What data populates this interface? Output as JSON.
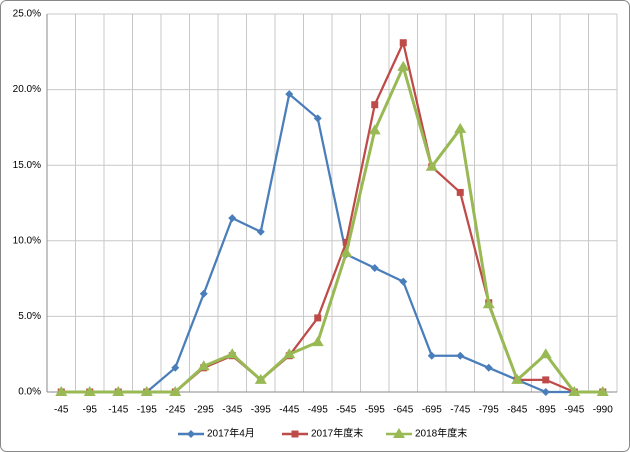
{
  "chart_data": {
    "type": "line",
    "categories": [
      "-45",
      "-95",
      "-145",
      "-195",
      "-245",
      "-295",
      "-345",
      "-395",
      "-445",
      "-495",
      "-545",
      "-595",
      "-645",
      "-695",
      "-745",
      "-795",
      "-845",
      "-895",
      "-945",
      "-990"
    ],
    "series": [
      {
        "name": "2017年4月",
        "color": "#4a7ebb",
        "marker": "diamond",
        "values": [
          0,
          0,
          0,
          0,
          1.6,
          6.5,
          11.5,
          10.6,
          19.7,
          18.1,
          9.1,
          8.2,
          7.3,
          2.4,
          2.4,
          1.6,
          0.8,
          0,
          0,
          0
        ]
      },
      {
        "name": "2017年度末",
        "color": "#be4b48",
        "marker": "square",
        "values": [
          0,
          0,
          0,
          0,
          0,
          1.6,
          2.4,
          0.8,
          2.4,
          4.9,
          9.9,
          19.0,
          23.1,
          14.9,
          13.2,
          5.9,
          0.8,
          0.8,
          0,
          0
        ]
      },
      {
        "name": "2018年度末",
        "color": "#98b954",
        "marker": "triangle",
        "values": [
          0,
          0,
          0,
          0,
          0,
          1.7,
          2.5,
          0.8,
          2.5,
          3.3,
          9.2,
          17.3,
          21.5,
          14.9,
          17.4,
          5.8,
          0.8,
          2.5,
          0,
          0
        ]
      }
    ],
    "ylim": [
      0,
      25
    ],
    "yticks": [
      {
        "value": 0,
        "label": "0.0%"
      },
      {
        "value": 5,
        "label": "5.0%"
      },
      {
        "value": 10,
        "label": "10.0%"
      },
      {
        "value": 15,
        "label": "15.0%"
      },
      {
        "value": 20,
        "label": "20.0%"
      },
      {
        "value": 25,
        "label": "25.0%"
      }
    ],
    "grid": true,
    "legend": "bottom"
  }
}
